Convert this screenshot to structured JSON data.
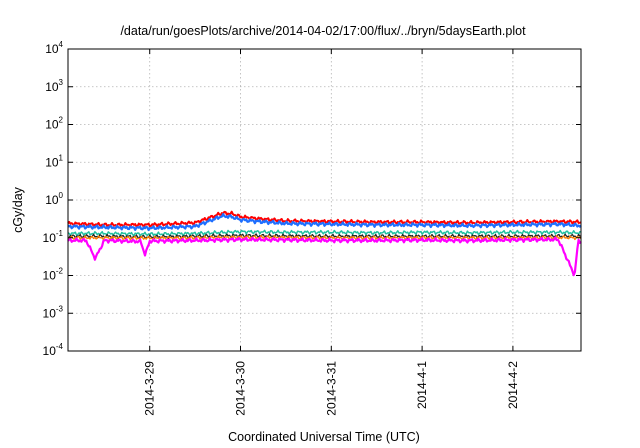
{
  "chart_data": {
    "type": "line",
    "title": "/data/run/goesPlots/archive/2014-04-02/17:00/flux/../bryn/5daysEarth.plot",
    "xlabel": "Coordinated Universal Time (UTC)",
    "ylabel": "cGy/day",
    "yscale": "log",
    "ylim": [
      0.0001,
      10000
    ],
    "xlim_days": [
      28.1,
      33.75
    ],
    "grid": true,
    "y_ticks": [
      {
        "base": "10",
        "exp": "4"
      },
      {
        "base": "10",
        "exp": "3"
      },
      {
        "base": "10",
        "exp": "2"
      },
      {
        "base": "10",
        "exp": "1"
      },
      {
        "base": "10",
        "exp": "0"
      },
      {
        "base": "10",
        "exp": "-1"
      },
      {
        "base": "10",
        "exp": "-2"
      },
      {
        "base": "10",
        "exp": "-3"
      },
      {
        "base": "10",
        "exp": "-4"
      }
    ],
    "x_ticks": [
      "2014-3-29",
      "2014-3-30",
      "2014-3-31",
      "2014-4-1",
      "2014-4-2"
    ],
    "series": [
      {
        "color": "#ff0000",
        "width": 2.0,
        "x": [
          28.1,
          28.5,
          29.0,
          29.5,
          29.8,
          29.9,
          30.0,
          30.2,
          30.5,
          31.0,
          31.5,
          32.0,
          32.5,
          33.0,
          33.5,
          33.75
        ],
        "y": [
          0.24,
          0.22,
          0.22,
          0.25,
          0.45,
          0.44,
          0.36,
          0.32,
          0.28,
          0.27,
          0.26,
          0.26,
          0.25,
          0.26,
          0.27,
          0.26
        ]
      },
      {
        "color": "#1e6fff",
        "width": 2.2,
        "x": [
          28.1,
          28.5,
          29.0,
          29.5,
          29.8,
          29.9,
          30.0,
          30.2,
          30.5,
          31.0,
          31.5,
          32.0,
          32.5,
          33.0,
          33.5,
          33.75
        ],
        "y": [
          0.2,
          0.19,
          0.18,
          0.2,
          0.38,
          0.36,
          0.3,
          0.27,
          0.24,
          0.23,
          0.22,
          0.22,
          0.21,
          0.22,
          0.23,
          0.21
        ]
      },
      {
        "color": "#20c0a0",
        "width": 1.5,
        "x": [
          28.1,
          28.5,
          29.0,
          29.5,
          30.0,
          30.5,
          31.0,
          31.5,
          32.0,
          32.5,
          33.0,
          33.5,
          33.75
        ],
        "y": [
          0.13,
          0.13,
          0.125,
          0.13,
          0.145,
          0.14,
          0.14,
          0.135,
          0.14,
          0.135,
          0.14,
          0.14,
          0.135
        ]
      },
      {
        "color": "#222222",
        "width": 1.3,
        "x": [
          28.1,
          28.5,
          29.0,
          29.5,
          30.0,
          30.5,
          31.0,
          31.5,
          32.0,
          32.5,
          33.0,
          33.5,
          33.75
        ],
        "y": [
          0.11,
          0.11,
          0.105,
          0.11,
          0.115,
          0.112,
          0.11,
          0.11,
          0.11,
          0.11,
          0.11,
          0.112,
          0.11
        ]
      },
      {
        "color": "#ff7f00",
        "width": 1.3,
        "x": [
          28.1,
          28.5,
          29.0,
          29.5,
          30.0,
          30.5,
          31.0,
          31.5,
          32.0,
          32.5,
          33.0,
          33.5,
          33.75
        ],
        "y": [
          0.1,
          0.1,
          0.098,
          0.1,
          0.104,
          0.102,
          0.1,
          0.1,
          0.101,
          0.1,
          0.1,
          0.102,
          0.1
        ]
      },
      {
        "color": "#ff00ff",
        "width": 2.2,
        "x": [
          28.1,
          28.3,
          28.4,
          28.5,
          28.9,
          28.95,
          29.0,
          29.5,
          30.0,
          30.5,
          31.0,
          31.5,
          32.0,
          32.5,
          33.0,
          33.5,
          33.68,
          33.72,
          33.75
        ],
        "y": [
          0.085,
          0.085,
          0.028,
          0.085,
          0.08,
          0.035,
          0.082,
          0.085,
          0.09,
          0.088,
          0.085,
          0.085,
          0.087,
          0.084,
          0.088,
          0.09,
          0.01,
          0.085,
          0.08
        ]
      }
    ]
  }
}
